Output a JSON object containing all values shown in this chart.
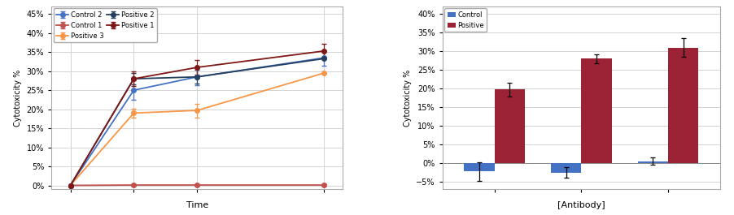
{
  "left_chart": {
    "xlabel": "Time",
    "ylabel": "Cytotoxicity %",
    "x": [
      0,
      1,
      2,
      4
    ],
    "series": [
      {
        "label": "Control 2",
        "color": "#4472C4",
        "values": [
          0.0,
          0.25,
          0.285,
          0.335
        ],
        "errors": [
          0.0,
          0.025,
          0.022,
          0.02
        ]
      },
      {
        "label": "Control 1",
        "color": "#C0504D",
        "values": [
          0.0,
          0.001,
          0.001,
          0.001
        ],
        "errors": [
          0.0,
          0.002,
          0.002,
          0.002
        ]
      },
      {
        "label": "Positive 3",
        "color": "#F79646",
        "values": [
          0.0,
          0.19,
          0.197,
          0.295
        ],
        "errors": [
          0.0,
          0.012,
          0.018,
          0.0
        ]
      },
      {
        "label": "Positive 2",
        "color": "#243F60",
        "values": [
          0.0,
          0.28,
          0.285,
          0.333
        ],
        "errors": [
          0.0,
          0.015,
          0.018,
          0.0
        ]
      },
      {
        "label": "Positive 1",
        "color": "#7F1717",
        "values": [
          0.0,
          0.28,
          0.31,
          0.353
        ],
        "errors": [
          0.0,
          0.02,
          0.02,
          0.018
        ]
      }
    ],
    "ylim": [
      -0.01,
      0.47
    ],
    "yticks": [
      0.0,
      0.05,
      0.1,
      0.15,
      0.2,
      0.25,
      0.3,
      0.35,
      0.4,
      0.45
    ]
  },
  "right_chart": {
    "xlabel": "[Antibody]",
    "ylabel": "Cytotoxicity %",
    "control_values": [
      -0.022,
      -0.025,
      0.005
    ],
    "control_errors": [
      0.025,
      0.015,
      0.01
    ],
    "positive_values": [
      0.197,
      0.28,
      0.31
    ],
    "positive_errors": [
      0.018,
      0.012,
      0.025
    ],
    "control_color": "#4472C4",
    "positive_color": "#9B2335",
    "ylim": [
      -0.07,
      0.42
    ],
    "yticks": [
      -0.05,
      0.0,
      0.05,
      0.1,
      0.15,
      0.2,
      0.25,
      0.3,
      0.35,
      0.4
    ]
  },
  "bg_color": "#FFFFFF",
  "grid_color": "#D3D3D3",
  "font_size": 8
}
